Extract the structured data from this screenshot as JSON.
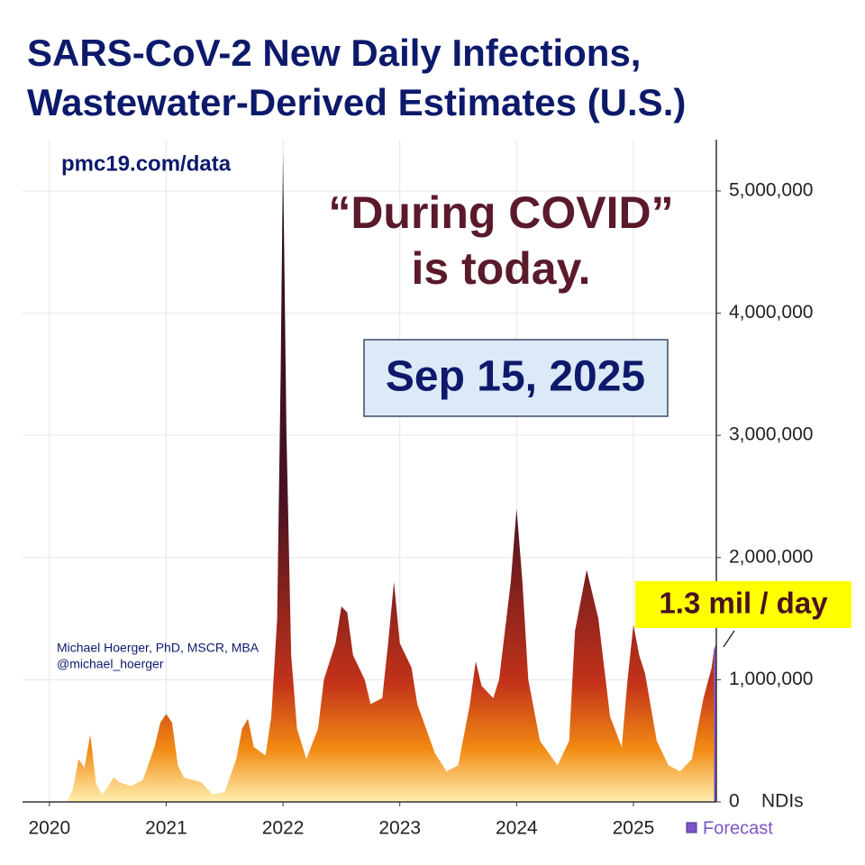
{
  "chart_data": {
    "type": "area",
    "title": [
      "SARS-CoV-2 New Daily Infections,",
      "Wastewater-Derived Estimates (U.S.)"
    ],
    "source": "pmc19.com/data",
    "quote": [
      "“During COVID”",
      "is today."
    ],
    "date": "Sep 15, 2025",
    "author": [
      "Michael Hoerger, PhD, MSCR, MBA",
      "@michael_hoerger"
    ],
    "callout": "1.3 mil / day",
    "y_unit": "NDIs",
    "xlim": [
      2019.77,
      2025.71
    ],
    "xticks": [
      2020,
      2021,
      2022,
      2023,
      2024,
      2025
    ],
    "ylim": [
      0,
      5420000
    ],
    "yticks": [
      0,
      {
        "value": 1000000,
        "label": "1,000,000"
      },
      {
        "value": 2000000,
        "label": "2,000,000"
      },
      {
        "value": 3000000,
        "label": "3,000,000"
      },
      {
        "value": 4000000,
        "label": "4,000,000"
      },
      {
        "value": 5000000,
        "label": "5,000,000"
      }
    ],
    "grid": true,
    "series": [
      {
        "colors": [
          "#2a0e1e",
          "#4a1220",
          "#c2321a",
          "#f28a12",
          "#fff0b0"
        ],
        "x": [
          2020.15,
          2020.2,
          2020.25,
          2020.3,
          2020.35,
          2020.4,
          2020.45,
          2020.5,
          2020.55,
          2020.6,
          2020.7,
          2020.8,
          2020.9,
          2020.95,
          2021.0,
          2021.05,
          2021.1,
          2021.15,
          2021.3,
          2021.4,
          2021.5,
          2021.6,
          2021.65,
          2021.7,
          2021.75,
          2021.85,
          2021.9,
          2021.95,
          2021.98,
          2022.0,
          2022.03,
          2022.07,
          2022.12,
          2022.2,
          2022.3,
          2022.35,
          2022.45,
          2022.5,
          2022.55,
          2022.6,
          2022.7,
          2022.75,
          2022.85,
          2022.9,
          2022.95,
          2023.0,
          2023.1,
          2023.15,
          2023.3,
          2023.4,
          2023.5,
          2023.6,
          2023.65,
          2023.7,
          2023.8,
          2023.85,
          2023.95,
          2024.0,
          2024.05,
          2024.1,
          2024.2,
          2024.35,
          2024.45,
          2024.5,
          2024.6,
          2024.7,
          2024.8,
          2024.9,
          2024.95,
          2025.0,
          2025.05,
          2025.1,
          2025.2,
          2025.3,
          2025.4,
          2025.5,
          2025.6,
          2025.67,
          2025.69
        ],
        "values": [
          0,
          100000,
          350000,
          280000,
          550000,
          150000,
          60000,
          120000,
          200000,
          160000,
          130000,
          180000,
          450000,
          650000,
          720000,
          650000,
          300000,
          200000,
          160000,
          60000,
          80000,
          350000,
          600000,
          680000,
          450000,
          380000,
          700000,
          1500000,
          3500000,
          5300000,
          3000000,
          1200000,
          600000,
          350000,
          600000,
          1000000,
          1300000,
          1600000,
          1550000,
          1200000,
          1000000,
          800000,
          850000,
          1300000,
          1800000,
          1300000,
          1100000,
          800000,
          400000,
          250000,
          300000,
          800000,
          1150000,
          950000,
          850000,
          1000000,
          1800000,
          2400000,
          1800000,
          1000000,
          500000,
          300000,
          500000,
          1400000,
          1900000,
          1500000,
          700000,
          450000,
          1000000,
          1450000,
          1200000,
          1050000,
          500000,
          300000,
          250000,
          350000,
          850000,
          1100000,
          1250000
        ]
      }
    ],
    "forecast": {
      "name": "Forecast",
      "color": "#7d55c7",
      "x": [
        2025.69,
        2025.71
      ],
      "values": [
        1250000,
        1300000
      ]
    }
  }
}
